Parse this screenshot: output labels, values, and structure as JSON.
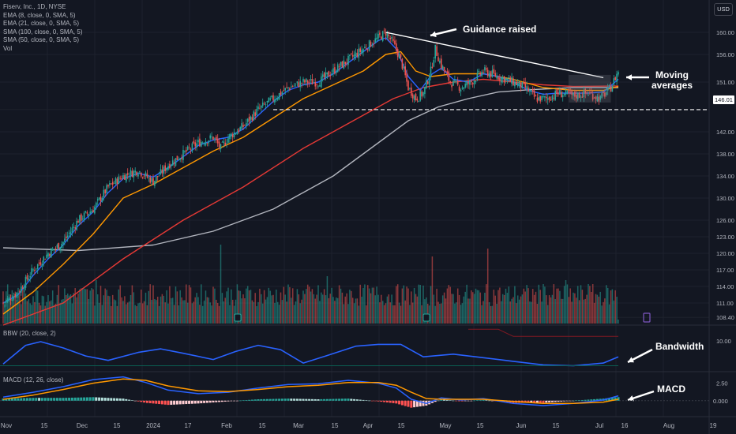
{
  "legend": {
    "symbol": "Fiserv, Inc., 1D, NYSE",
    "indicators": [
      "EMA (8, close, 0, SMA, 5)",
      "EMA (21, close, 0, SMA, 5)",
      "SMA (100, close, 0, SMA, 5)",
      "SMA (50, close, 0, SMA, 5)",
      "Vol"
    ]
  },
  "currency": "USD",
  "panes": {
    "bbw_label": "BBW (20, close, 2)",
    "macd_label": "MACD (12, 26, close)"
  },
  "annotations": {
    "guidance": "Guidance raised",
    "moving_averages_1": "Moving",
    "moving_averages_2": "averages",
    "bandwidth": "Bandwidth",
    "macd": "MACD"
  },
  "price_tag": "146.01",
  "colors": {
    "background": "#131722",
    "up": "#26a69a",
    "down": "#ef5350",
    "ema8": "#2962ff",
    "ema21": "#ff9800",
    "sma100": "#b2b5be",
    "sma50": "#e53935",
    "bbw": "#2962ff",
    "macd_line": "#2962ff",
    "signal_line": "#ff9800"
  },
  "chart_data": {
    "type": "candlestick",
    "price_axis": {
      "ticks": [
        "160.00",
        "156.00",
        "151.00",
        "146.01",
        "142.00",
        "138.00",
        "134.00",
        "130.00",
        "126.00",
        "123.00",
        "120.00",
        "117.00",
        "114.00",
        "111.00",
        "108.40"
      ],
      "range": [
        108,
        161
      ]
    },
    "x_axis": {
      "ticks": [
        "Nov",
        "15",
        "Dec",
        "15",
        "2024",
        "17",
        "Feb",
        "15",
        "Mar",
        "15",
        "Apr",
        "15",
        "May",
        "15",
        "Jun",
        "15",
        "Jul",
        "16",
        "Aug",
        "19"
      ]
    },
    "key_levels": {
      "support": 146.01,
      "resistance_line": [
        160.0,
        151.8
      ]
    },
    "close_path": [
      [
        0,
        111
      ],
      [
        10,
        113
      ],
      [
        20,
        117
      ],
      [
        30,
        120
      ],
      [
        40,
        122
      ],
      [
        50,
        126
      ],
      [
        60,
        128
      ],
      [
        70,
        132
      ],
      [
        80,
        134
      ],
      [
        90,
        135
      ],
      [
        95,
        134
      ],
      [
        100,
        133
      ],
      [
        110,
        136
      ],
      [
        120,
        138
      ],
      [
        130,
        140
      ],
      [
        140,
        141
      ],
      [
        145,
        139
      ],
      [
        150,
        141
      ],
      [
        160,
        143
      ],
      [
        170,
        146
      ],
      [
        180,
        148
      ],
      [
        190,
        150
      ],
      [
        200,
        151
      ],
      [
        210,
        151
      ],
      [
        220,
        153
      ],
      [
        230,
        155
      ],
      [
        240,
        157
      ],
      [
        250,
        159
      ],
      [
        255,
        160
      ],
      [
        260,
        158
      ],
      [
        265,
        155
      ],
      [
        270,
        150
      ],
      [
        275,
        148
      ],
      [
        280,
        149
      ],
      [
        285,
        153
      ],
      [
        288,
        157
      ],
      [
        292,
        154
      ],
      [
        298,
        151
      ],
      [
        305,
        150
      ],
      [
        312,
        151
      ],
      [
        320,
        153
      ],
      [
        330,
        152
      ],
      [
        340,
        151
      ],
      [
        348,
        150
      ],
      [
        355,
        148
      ],
      [
        362,
        148
      ],
      [
        370,
        149
      ],
      [
        380,
        148.5
      ],
      [
        390,
        149
      ],
      [
        398,
        148
      ],
      [
        405,
        150
      ],
      [
        410,
        153
      ]
    ],
    "ema8": [
      [
        0,
        111
      ],
      [
        10,
        112.5
      ],
      [
        20,
        116
      ],
      [
        30,
        119
      ],
      [
        40,
        121.5
      ],
      [
        50,
        125
      ],
      [
        60,
        127.5
      ],
      [
        70,
        131
      ],
      [
        80,
        133.5
      ],
      [
        90,
        134.5
      ],
      [
        100,
        133.8
      ],
      [
        110,
        135.5
      ],
      [
        120,
        137.5
      ],
      [
        130,
        139.5
      ],
      [
        140,
        140.5
      ],
      [
        150,
        141
      ],
      [
        160,
        142.5
      ],
      [
        170,
        145
      ],
      [
        180,
        147.5
      ],
      [
        190,
        149.5
      ],
      [
        200,
        150.5
      ],
      [
        210,
        151
      ],
      [
        220,
        152.5
      ],
      [
        230,
        154.5
      ],
      [
        240,
        156.5
      ],
      [
        250,
        158.5
      ],
      [
        255,
        159
      ],
      [
        262,
        157
      ],
      [
        270,
        152
      ],
      [
        278,
        149.5
      ],
      [
        286,
        152.5
      ],
      [
        292,
        153.5
      ],
      [
        300,
        151.5
      ],
      [
        310,
        151
      ],
      [
        320,
        152.5
      ],
      [
        330,
        152
      ],
      [
        340,
        151
      ],
      [
        350,
        149.5
      ],
      [
        360,
        148.8
      ],
      [
        370,
        149
      ],
      [
        380,
        149
      ],
      [
        390,
        149
      ],
      [
        400,
        149.2
      ],
      [
        410,
        151.5
      ]
    ],
    "ema21": [
      [
        0,
        109
      ],
      [
        20,
        113
      ],
      [
        40,
        118
      ],
      [
        60,
        123.5
      ],
      [
        80,
        130
      ],
      [
        100,
        132.5
      ],
      [
        120,
        135.5
      ],
      [
        140,
        138.5
      ],
      [
        160,
        141
      ],
      [
        180,
        144.5
      ],
      [
        200,
        148
      ],
      [
        220,
        150.5
      ],
      [
        240,
        153
      ],
      [
        255,
        156
      ],
      [
        265,
        156.5
      ],
      [
        275,
        153
      ],
      [
        285,
        152
      ],
      [
        300,
        152.5
      ],
      [
        320,
        152.5
      ],
      [
        340,
        151.5
      ],
      [
        360,
        150
      ],
      [
        380,
        149.5
      ],
      [
        400,
        149.5
      ],
      [
        410,
        150.2
      ]
    ],
    "sma50": [
      [
        0,
        107
      ],
      [
        40,
        111
      ],
      [
        80,
        119
      ],
      [
        120,
        126
      ],
      [
        160,
        132
      ],
      [
        200,
        139
      ],
      [
        240,
        145
      ],
      [
        260,
        148
      ],
      [
        280,
        150
      ],
      [
        300,
        151
      ],
      [
        320,
        151.5
      ],
      [
        340,
        151
      ],
      [
        360,
        150.5
      ],
      [
        380,
        150.2
      ],
      [
        410,
        150.3
      ]
    ],
    "sma100": [
      [
        0,
        121
      ],
      [
        50,
        120.5
      ],
      [
        100,
        121.5
      ],
      [
        140,
        124
      ],
      [
        180,
        128
      ],
      [
        220,
        134
      ],
      [
        250,
        140
      ],
      [
        270,
        144
      ],
      [
        290,
        146.5
      ],
      [
        310,
        148
      ],
      [
        330,
        149.2
      ],
      [
        350,
        149.6
      ],
      [
        380,
        150
      ],
      [
        410,
        150
      ]
    ],
    "bbw": [
      [
        0,
        7.4
      ],
      [
        15,
        9.5
      ],
      [
        25,
        9.9
      ],
      [
        40,
        9.2
      ],
      [
        55,
        8.3
      ],
      [
        70,
        7.8
      ],
      [
        90,
        8.7
      ],
      [
        105,
        9.1
      ],
      [
        120,
        8.6
      ],
      [
        140,
        7.9
      ],
      [
        155,
        8.8
      ],
      [
        170,
        9.5
      ],
      [
        185,
        9.0
      ],
      [
        200,
        7.5
      ],
      [
        215,
        8.3
      ],
      [
        235,
        9.4
      ],
      [
        250,
        9.6
      ],
      [
        265,
        9.6
      ],
      [
        280,
        8.2
      ],
      [
        300,
        8.5
      ],
      [
        320,
        8.1
      ],
      [
        340,
        7.7
      ],
      [
        360,
        7.3
      ],
      [
        380,
        7.2
      ],
      [
        400,
        7.5
      ],
      [
        410,
        8.2
      ]
    ],
    "macd": [
      [
        0,
        0.5
      ],
      [
        20,
        1.2
      ],
      [
        40,
        2.0
      ],
      [
        60,
        3.0
      ],
      [
        80,
        3.4
      ],
      [
        95,
        2.6
      ],
      [
        110,
        1.5
      ],
      [
        130,
        1.0
      ],
      [
        150,
        1.2
      ],
      [
        170,
        1.8
      ],
      [
        190,
        2.3
      ],
      [
        210,
        2.4
      ],
      [
        230,
        2.9
      ],
      [
        250,
        2.5
      ],
      [
        262,
        1.8
      ],
      [
        272,
        0.2
      ],
      [
        282,
        -0.4
      ],
      [
        292,
        0.4
      ],
      [
        305,
        0.1
      ],
      [
        320,
        0.3
      ],
      [
        340,
        -0.4
      ],
      [
        360,
        -0.7
      ],
      [
        380,
        -0.4
      ],
      [
        400,
        0.1
      ],
      [
        410,
        0.7
      ]
    ],
    "macd_signal": [
      [
        0,
        0.2
      ],
      [
        20,
        0.8
      ],
      [
        40,
        1.6
      ],
      [
        60,
        2.5
      ],
      [
        80,
        3.1
      ],
      [
        95,
        2.9
      ],
      [
        110,
        2.1
      ],
      [
        130,
        1.4
      ],
      [
        150,
        1.3
      ],
      [
        170,
        1.6
      ],
      [
        190,
        2.0
      ],
      [
        210,
        2.2
      ],
      [
        230,
        2.6
      ],
      [
        250,
        2.6
      ],
      [
        262,
        2.2
      ],
      [
        272,
        1.2
      ],
      [
        282,
        0.3
      ],
      [
        292,
        0.2
      ],
      [
        305,
        0.2
      ],
      [
        320,
        0.2
      ],
      [
        340,
        -0.1
      ],
      [
        360,
        -0.4
      ],
      [
        380,
        -0.4
      ],
      [
        400,
        -0.2
      ],
      [
        410,
        0.2
      ]
    ],
    "volume_spikes": [
      [
        62,
        0.55
      ],
      [
        145,
        1.0
      ],
      [
        216,
        0.6
      ],
      [
        286,
        0.85
      ],
      [
        323,
        0.95
      ],
      [
        360,
        0.5
      ],
      [
        375,
        0.55
      ],
      [
        390,
        0.5
      ]
    ],
    "macd_axis": [
      "2.50",
      "0.000"
    ],
    "bbw_axis": [
      "10.00"
    ]
  }
}
